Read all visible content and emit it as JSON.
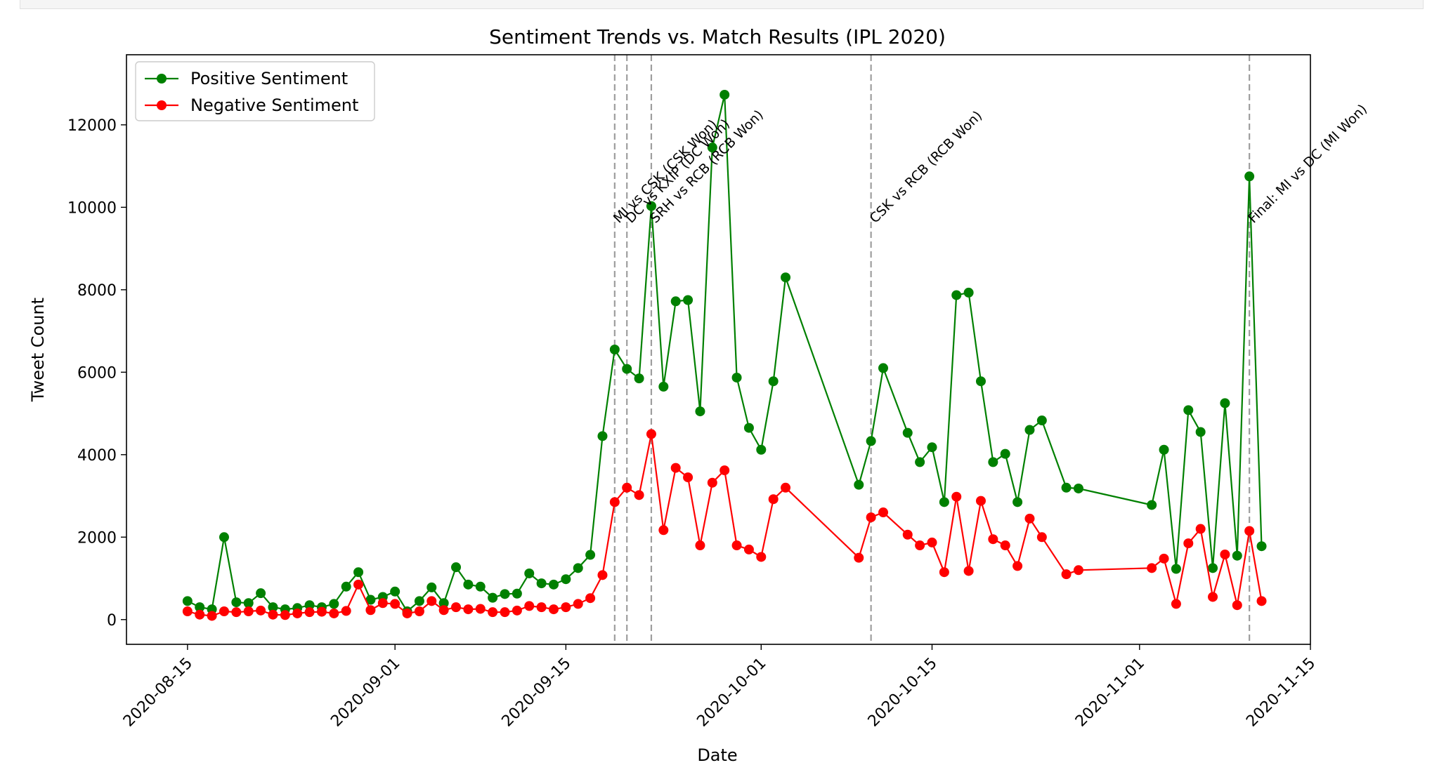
{
  "chart_data": {
    "type": "line",
    "title": "Sentiment Trends vs. Match Results (IPL 2020)",
    "xlabel": "Date",
    "ylabel": "Tweet Count",
    "xlim": [
      "2020-08-10",
      "2020-11-15"
    ],
    "ylim": [
      -600,
      13700
    ],
    "x_ticks": [
      "2020-08-15",
      "2020-09-01",
      "2020-09-15",
      "2020-10-01",
      "2020-10-15",
      "2020-11-01",
      "2020-11-15"
    ],
    "y_ticks": [
      0,
      2000,
      4000,
      6000,
      8000,
      10000,
      12000
    ],
    "grid": false,
    "legend": "top-left",
    "series": [
      {
        "name": "Positive Sentiment",
        "color": "#008000",
        "marker": "circle",
        "points": [
          [
            "2020-08-15",
            450
          ],
          [
            "2020-08-16",
            300
          ],
          [
            "2020-08-17",
            250
          ],
          [
            "2020-08-18",
            2000
          ],
          [
            "2020-08-19",
            420
          ],
          [
            "2020-08-20",
            400
          ],
          [
            "2020-08-21",
            640
          ],
          [
            "2020-08-22",
            300
          ],
          [
            "2020-08-23",
            250
          ],
          [
            "2020-08-24",
            280
          ],
          [
            "2020-08-25",
            350
          ],
          [
            "2020-08-26",
            300
          ],
          [
            "2020-08-27",
            380
          ],
          [
            "2020-08-28",
            800
          ],
          [
            "2020-08-29",
            1150
          ],
          [
            "2020-08-30",
            480
          ],
          [
            "2020-08-31",
            550
          ],
          [
            "2020-09-01",
            680
          ],
          [
            "2020-09-02",
            200
          ],
          [
            "2020-09-03",
            450
          ],
          [
            "2020-09-04",
            780
          ],
          [
            "2020-09-05",
            400
          ],
          [
            "2020-09-06",
            1270
          ],
          [
            "2020-09-07",
            850
          ],
          [
            "2020-09-08",
            800
          ],
          [
            "2020-09-09",
            530
          ],
          [
            "2020-09-10",
            620
          ],
          [
            "2020-09-11",
            630
          ],
          [
            "2020-09-12",
            1120
          ],
          [
            "2020-09-13",
            880
          ],
          [
            "2020-09-14",
            850
          ],
          [
            "2020-09-15",
            980
          ],
          [
            "2020-09-16",
            1250
          ],
          [
            "2020-09-17",
            1570
          ],
          [
            "2020-09-18",
            4450
          ],
          [
            "2020-09-19",
            6550
          ],
          [
            "2020-09-20",
            6080
          ],
          [
            "2020-09-21",
            5850
          ],
          [
            "2020-09-22",
            10030
          ],
          [
            "2020-09-23",
            5650
          ],
          [
            "2020-09-24",
            7720
          ],
          [
            "2020-09-25",
            7750
          ],
          [
            "2020-09-26",
            5050
          ],
          [
            "2020-09-27",
            11450
          ],
          [
            "2020-09-28",
            12730
          ],
          [
            "2020-09-29",
            5870
          ],
          [
            "2020-09-30",
            4650
          ],
          [
            "2020-10-01",
            4120
          ],
          [
            "2020-10-02",
            5780
          ],
          [
            "2020-10-03",
            8300
          ],
          [
            "2020-10-09",
            3270
          ],
          [
            "2020-10-10",
            4330
          ],
          [
            "2020-10-11",
            6100
          ],
          [
            "2020-10-13",
            4530
          ],
          [
            "2020-10-14",
            3820
          ],
          [
            "2020-10-15",
            4180
          ],
          [
            "2020-10-16",
            2850
          ],
          [
            "2020-10-17",
            7870
          ],
          [
            "2020-10-18",
            7930
          ],
          [
            "2020-10-19",
            5780
          ],
          [
            "2020-10-20",
            3820
          ],
          [
            "2020-10-21",
            4020
          ],
          [
            "2020-10-22",
            2850
          ],
          [
            "2020-10-23",
            4600
          ],
          [
            "2020-10-24",
            4830
          ],
          [
            "2020-10-26",
            3200
          ],
          [
            "2020-10-27",
            3180
          ],
          [
            "2020-11-02",
            2780
          ],
          [
            "2020-11-03",
            4120
          ],
          [
            "2020-11-04",
            1230
          ],
          [
            "2020-11-05",
            5080
          ],
          [
            "2020-11-06",
            4550
          ],
          [
            "2020-11-07",
            1250
          ],
          [
            "2020-11-08",
            5250
          ],
          [
            "2020-11-09",
            1550
          ],
          [
            "2020-11-10",
            10750
          ],
          [
            "2020-11-11",
            1780
          ]
        ]
      },
      {
        "name": "Negative Sentiment",
        "color": "#ff0000",
        "marker": "circle",
        "points": [
          [
            "2020-08-15",
            200
          ],
          [
            "2020-08-16",
            120
          ],
          [
            "2020-08-17",
            90
          ],
          [
            "2020-08-18",
            200
          ],
          [
            "2020-08-19",
            180
          ],
          [
            "2020-08-20",
            200
          ],
          [
            "2020-08-21",
            220
          ],
          [
            "2020-08-22",
            120
          ],
          [
            "2020-08-23",
            110
          ],
          [
            "2020-08-24",
            150
          ],
          [
            "2020-08-25",
            180
          ],
          [
            "2020-08-26",
            190
          ],
          [
            "2020-08-27",
            150
          ],
          [
            "2020-08-28",
            210
          ],
          [
            "2020-08-29",
            850
          ],
          [
            "2020-08-30",
            230
          ],
          [
            "2020-08-31",
            400
          ],
          [
            "2020-09-01",
            380
          ],
          [
            "2020-09-02",
            150
          ],
          [
            "2020-09-03",
            200
          ],
          [
            "2020-09-04",
            450
          ],
          [
            "2020-09-05",
            230
          ],
          [
            "2020-09-06",
            300
          ],
          [
            "2020-09-07",
            250
          ],
          [
            "2020-09-08",
            260
          ],
          [
            "2020-09-09",
            180
          ],
          [
            "2020-09-10",
            180
          ],
          [
            "2020-09-11",
            220
          ],
          [
            "2020-09-12",
            330
          ],
          [
            "2020-09-13",
            300
          ],
          [
            "2020-09-14",
            250
          ],
          [
            "2020-09-15",
            300
          ],
          [
            "2020-09-16",
            380
          ],
          [
            "2020-09-17",
            520
          ],
          [
            "2020-09-18",
            1080
          ],
          [
            "2020-09-19",
            2850
          ],
          [
            "2020-09-20",
            3200
          ],
          [
            "2020-09-21",
            3020
          ],
          [
            "2020-09-22",
            4500
          ],
          [
            "2020-09-23",
            2170
          ],
          [
            "2020-09-24",
            3680
          ],
          [
            "2020-09-25",
            3450
          ],
          [
            "2020-09-26",
            1800
          ],
          [
            "2020-09-27",
            3320
          ],
          [
            "2020-09-28",
            3620
          ],
          [
            "2020-09-29",
            1800
          ],
          [
            "2020-09-30",
            1700
          ],
          [
            "2020-10-01",
            1520
          ],
          [
            "2020-10-02",
            2920
          ],
          [
            "2020-10-03",
            3200
          ],
          [
            "2020-10-09",
            1500
          ],
          [
            "2020-10-10",
            2480
          ],
          [
            "2020-10-11",
            2600
          ],
          [
            "2020-10-13",
            2060
          ],
          [
            "2020-10-14",
            1800
          ],
          [
            "2020-10-15",
            1870
          ],
          [
            "2020-10-16",
            1150
          ],
          [
            "2020-10-17",
            2980
          ],
          [
            "2020-10-18",
            1180
          ],
          [
            "2020-10-19",
            2880
          ],
          [
            "2020-10-20",
            1950
          ],
          [
            "2020-10-21",
            1800
          ],
          [
            "2020-10-22",
            1300
          ],
          [
            "2020-10-23",
            2450
          ],
          [
            "2020-10-24",
            2000
          ],
          [
            "2020-10-26",
            1100
          ],
          [
            "2020-10-27",
            1200
          ],
          [
            "2020-11-02",
            1250
          ],
          [
            "2020-11-03",
            1480
          ],
          [
            "2020-11-04",
            380
          ],
          [
            "2020-11-05",
            1850
          ],
          [
            "2020-11-06",
            2200
          ],
          [
            "2020-11-07",
            550
          ],
          [
            "2020-11-08",
            1580
          ],
          [
            "2020-11-09",
            350
          ],
          [
            "2020-11-10",
            2150
          ],
          [
            "2020-11-11",
            450
          ]
        ]
      }
    ],
    "match_lines": [
      {
        "date": "2020-09-19",
        "label": "MI vs CSK (CSK Won)"
      },
      {
        "date": "2020-09-20",
        "label": "DC vs KXIP (DC Won)"
      },
      {
        "date": "2020-09-22",
        "label": "SRH vs RCB (RCB Won)"
      },
      {
        "date": "2020-10-10",
        "label": "CSK vs RCB (RCB Won)"
      },
      {
        "date": "2020-11-10",
        "label": "Final: MI vs DC (MI Won)"
      }
    ]
  }
}
